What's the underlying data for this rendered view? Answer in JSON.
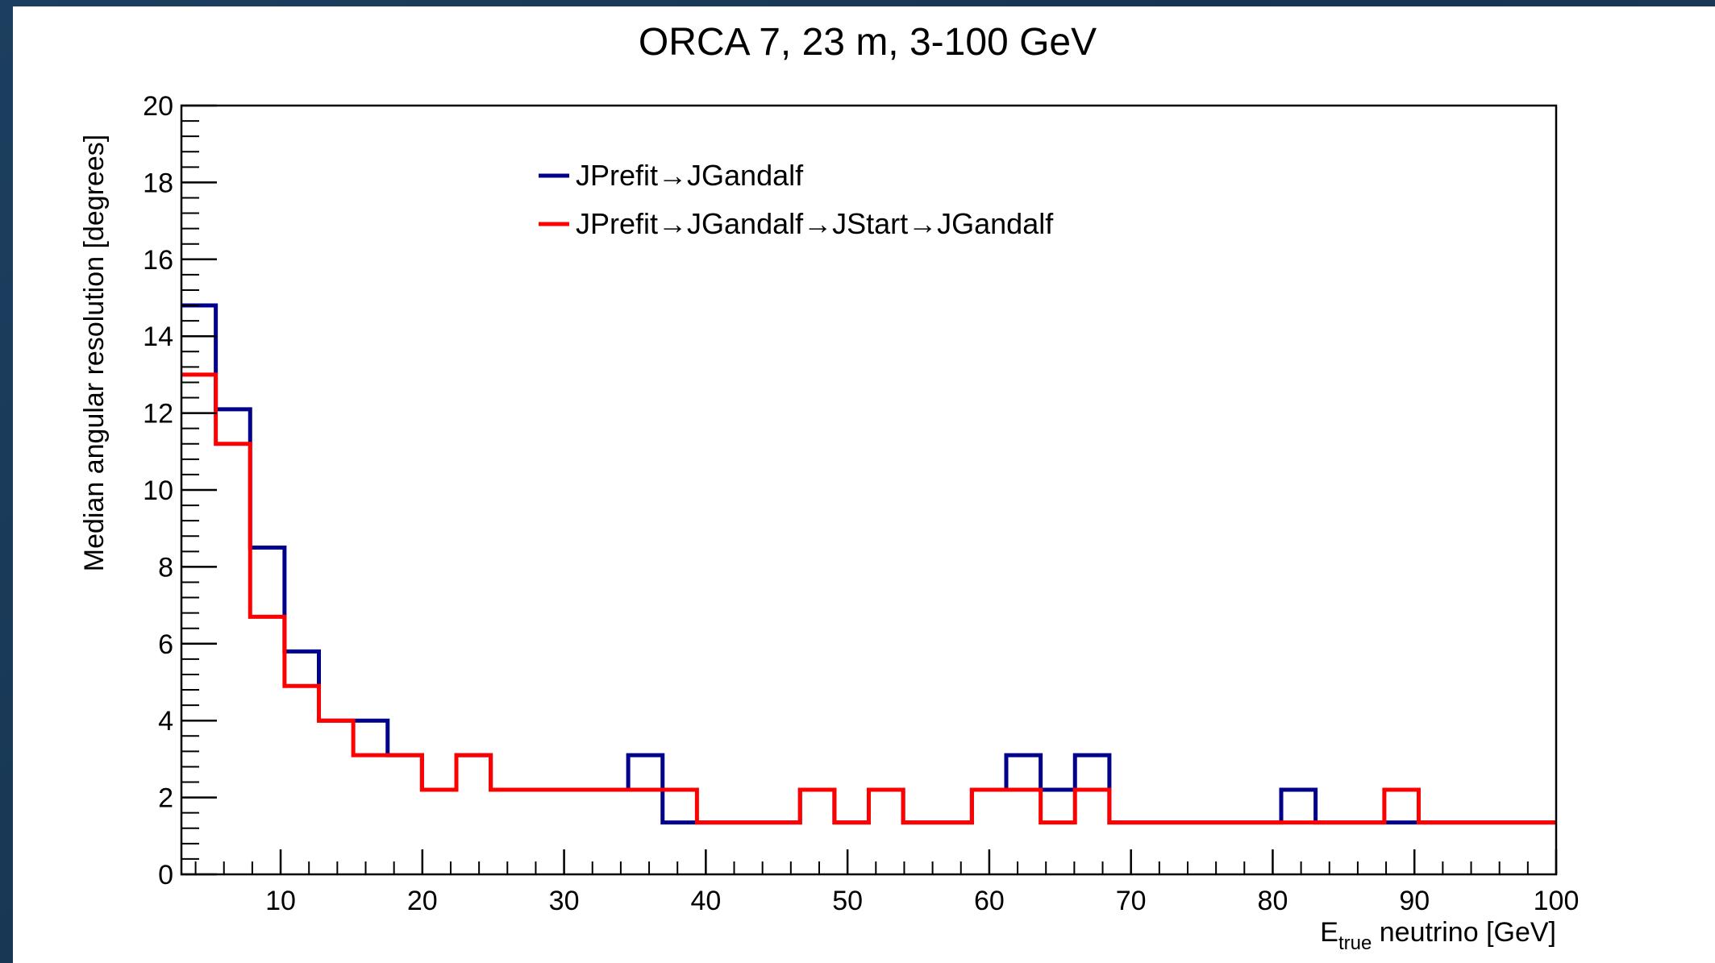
{
  "chart_data": {
    "type": "line",
    "title": "ORCA 7, 23 m, 3-100 GeV",
    "xlabel": {
      "main": "E",
      "sub": "true",
      "rest": " neutrino [GeV]"
    },
    "ylabel": "Median angular resolution [degrees]",
    "xlim": [
      3,
      100
    ],
    "ylim": [
      0,
      20
    ],
    "xticks": [
      10,
      20,
      30,
      40,
      50,
      60,
      70,
      80,
      90,
      100
    ],
    "yticks": [
      0,
      2,
      4,
      6,
      8,
      10,
      12,
      14,
      16,
      18,
      20
    ],
    "grid": false,
    "legend_position": "top-center",
    "bin_edges": [
      3,
      5.425,
      7.85,
      10.275,
      12.7,
      15.125,
      17.55,
      19.975,
      22.4,
      24.825,
      27.25,
      29.675,
      32.1,
      34.525,
      36.95,
      39.375,
      41.8,
      44.225,
      46.65,
      49.075,
      51.5,
      53.925,
      56.35,
      58.775,
      61.2,
      63.625,
      66.05,
      68.475,
      70.9,
      73.325,
      75.75,
      78.175,
      80.6,
      83.025,
      85.45,
      87.875,
      90.3,
      92.725,
      95.15,
      97.575,
      100
    ],
    "series": [
      {
        "name": "JPrefit→JGandalf",
        "color": "#00008b",
        "values": [
          14.8,
          12.1,
          8.5,
          5.8,
          4.0,
          4.0,
          3.1,
          2.2,
          3.1,
          2.2,
          2.2,
          2.2,
          2.2,
          3.1,
          1.35,
          1.35,
          1.35,
          1.35,
          2.2,
          1.35,
          2.2,
          1.35,
          1.35,
          2.2,
          3.1,
          2.2,
          3.1,
          1.35,
          1.35,
          1.35,
          1.35,
          1.35,
          2.2,
          1.35,
          1.35,
          1.35,
          1.35,
          1.35,
          1.35,
          1.35
        ]
      },
      {
        "name": "JPrefit→JGandalf→JStart→JGandalf",
        "color": "#ff0000",
        "values": [
          13.0,
          11.2,
          6.7,
          4.9,
          4.0,
          3.1,
          3.1,
          2.2,
          3.1,
          2.2,
          2.2,
          2.2,
          2.2,
          2.2,
          2.2,
          1.35,
          1.35,
          1.35,
          2.2,
          1.35,
          2.2,
          1.35,
          1.35,
          2.2,
          2.2,
          1.35,
          2.2,
          1.35,
          1.35,
          1.35,
          1.35,
          1.35,
          1.35,
          1.35,
          1.35,
          2.2,
          1.35,
          1.35,
          1.35,
          1.35
        ]
      }
    ]
  }
}
